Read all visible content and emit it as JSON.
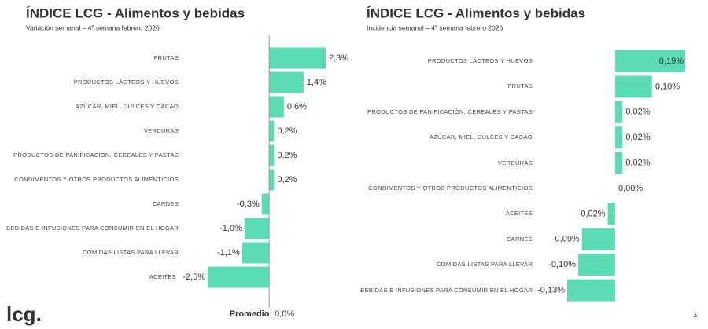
{
  "chart_data": [
    {
      "type": "bar",
      "orientation": "horizontal",
      "title": "ÍNDICE LCG - Alimentos y bebidas",
      "subtitle": "Variación semanal – 4º semana febrero 2026",
      "color": "#5cdcb4",
      "categories": [
        "FRUTAS",
        "PRODUCTOS LÁCTEOS Y HUEVOS",
        "AZÚCAR, MIEL, DULCES Y CACAO",
        "VERDURAS",
        "PRODUCTOS DE PANIFICACIÓN, CEREALES Y PASTAS",
        "CONDIMENTOS Y OTROS PRODUCTOS ALIMENTICIOS",
        "CARNES",
        "BEBIDAS E INFUSIONES PARA CONSUMIR EN EL HOGAR",
        "COMIDAS LISTAS PARA LLEVAR",
        "ACEITES"
      ],
      "values": [
        2.3,
        1.4,
        0.6,
        0.2,
        0.2,
        0.2,
        -0.3,
        -1.0,
        -1.1,
        -2.5
      ],
      "value_labels": [
        "2,3%",
        "1,4%",
        "0,6%",
        "0,2%",
        "0,2%",
        "0,2%",
        "-0,3%",
        "-1,0%",
        "-1,1%",
        "-2,5%"
      ],
      "average_label": "Promedio:",
      "average": 0,
      "average_value_label": "0,0%"
    },
    {
      "type": "bar",
      "orientation": "horizontal",
      "title": "ÍNDICE LCG - Alimentos y bebidas",
      "subtitle": "Incidencia semanal – 4º semana febrero 2026",
      "color": "#5cdcb4",
      "categories": [
        "PRODUCTOS LÁCTEOS Y HUEVOS",
        "FRUTAS",
        "PRODUCTOS DE PANIFICACIÓN, CEREALES Y PASTAS",
        "AZÚCAR, MIEL, DULCES Y CACAO",
        "VERDURAS",
        "CONDIMENTOS Y OTROS PRODUCTOS ALIMENTICIOS",
        "ACEITES",
        "CARNES",
        "COMIDAS LISTAS PARA LLEVAR",
        "BEBIDAS E INFUSIONES PARA CONSUMIR EN EL HOGAR"
      ],
      "values": [
        0.19,
        0.1,
        0.02,
        0.02,
        0.02,
        0.0,
        -0.02,
        -0.09,
        -0.1,
        -0.13
      ],
      "value_labels": [
        "0,19%",
        "0,10%",
        "0,02%",
        "0,02%",
        "0,02%",
        "0,00%",
        "-0,02%",
        "-0,09%",
        "-0,10%",
        "-0,13%"
      ]
    }
  ],
  "logo": "lcg.",
  "page_number": "3"
}
